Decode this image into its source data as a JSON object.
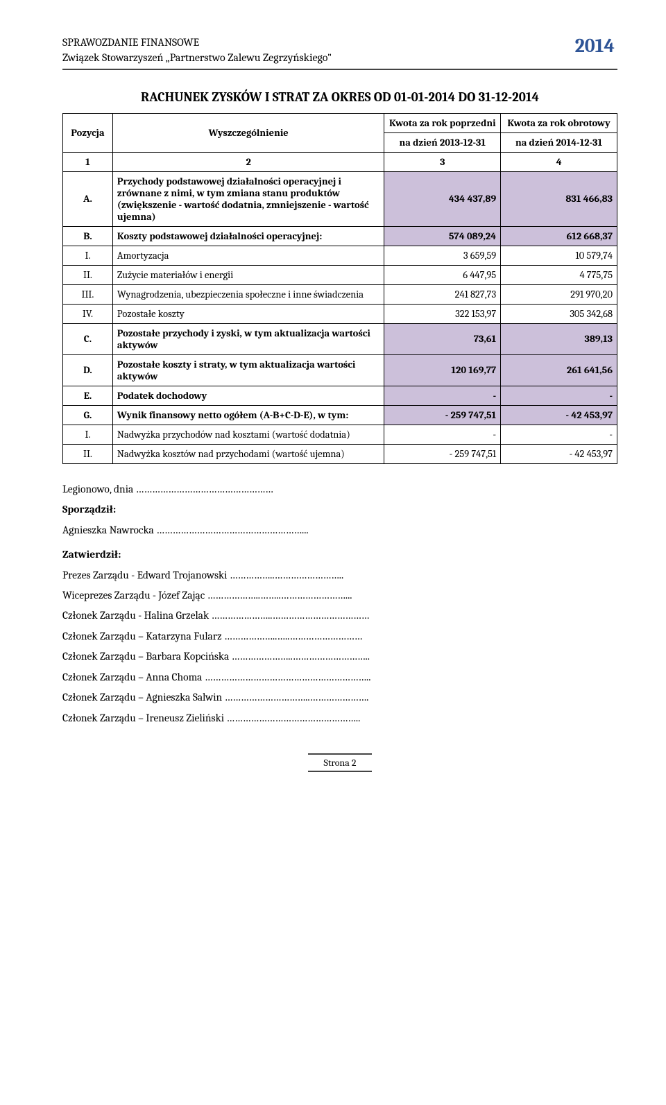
{
  "header": {
    "line1": "SPRAWOZDANIE FINANSOWE",
    "line2": "Związek Stowarzyszeń „Partnerstwo Zalewu Zegrzyńskiego\"",
    "year": "2014"
  },
  "title": "RACHUNEK ZYSKÓW I STRAT ZA OKRES OD 01-01-2014 DO 31-12-2014",
  "table": {
    "head": {
      "pozycja": "Pozycja",
      "wyszcz": "Wyszczególnienie",
      "col1_top": "Kwota za rok poprzedni",
      "col2_top": "Kwota za rok obrotowy",
      "col1_sub": "na dzień 2013-12-31",
      "col2_sub": "na dzień 2014-12-31",
      "h1": "1",
      "h2": "2",
      "h3": "3",
      "h4": "4"
    },
    "rows": [
      {
        "pos": "A.",
        "desc": "Przychody podstawowej działalności operacyjnej i zrównane z nimi, w tym zmiana stanu produktów (zwiększenie - wartość dodatnia, zmniejszenie - wartość ujemna)",
        "v1": "434 437,89",
        "v2": "831 466,83",
        "bold": true,
        "hl": true
      },
      {
        "pos": "B.",
        "desc": "Koszty podstawowej działalności operacyjnej:",
        "v1": "574 089,24",
        "v2": "612 668,37",
        "bold": true,
        "hl": true
      },
      {
        "pos": "I.",
        "desc": "Amortyzacja",
        "v1": "3 659,59",
        "v2": "10 579,74",
        "bold": false,
        "hl": false
      },
      {
        "pos": "II.",
        "desc": "Zużycie materiałów i energii",
        "v1": "6 447,95",
        "v2": "4 775,75",
        "bold": false,
        "hl": false
      },
      {
        "pos": "III.",
        "desc": "Wynagrodzenia, ubezpieczenia społeczne i inne świadczenia",
        "v1": "241 827,73",
        "v2": "291 970,20",
        "bold": false,
        "hl": false
      },
      {
        "pos": "IV.",
        "desc": "Pozostałe koszty",
        "v1": "322 153,97",
        "v2": "305 342,68",
        "bold": false,
        "hl": false
      },
      {
        "pos": "C.",
        "desc": "Pozostałe przychody i zyski, w tym aktualizacja wartości aktywów",
        "v1": "73,61",
        "v2": "389,13",
        "bold": true,
        "hl": true
      },
      {
        "pos": "D.",
        "desc": "Pozostałe koszty i straty, w tym aktualizacja wartości aktywów",
        "v1": "120 169,77",
        "v2": "261 641,56",
        "bold": true,
        "hl": true
      },
      {
        "pos": "E.",
        "desc": "Podatek dochodowy",
        "v1": "-",
        "v2": "-",
        "bold": true,
        "hl": true
      },
      {
        "pos": "G.",
        "desc": "Wynik finansowy netto ogółem (A-B+C-D-E), w tym:",
        "v1": "- 259 747,51",
        "v2": "- 42 453,97",
        "bold": true,
        "hl": true
      },
      {
        "pos": "I.",
        "desc": "Nadwyżka przychodów nad kosztami (wartość dodatnia)",
        "v1": "-",
        "v2": "-",
        "bold": false,
        "hl": false
      },
      {
        "pos": "II.",
        "desc": "Nadwyżka kosztów nad przychodami (wartość ujemna)",
        "v1": "- 259 747,51",
        "v2": "- 42 453,97",
        "bold": false,
        "hl": false
      }
    ]
  },
  "signatures": {
    "place": "Legionowo, dnia ……………………………………………",
    "prepared_label": "Sporządził:",
    "prepared_name": "Agnieszka Nawrocka ………………………………………………...",
    "approved_label": "Zatwierdził:",
    "lines": [
      "Prezes Zarządu - Edward Trojanowski ……………..……………………..",
      "Wiceprezes Zarządu - Józef Zając ………………..……..……………………...",
      "Członek Zarządu - Halina Grzelak …………………..………………………………",
      "Członek Zarządu – Katarzyna Fularz ………………..…..………………………",
      "Członek Zarządu – Barbara Kopcińska …………………..………………………..",
      "Członek Zarządu – Anna Choma ……………………………………………………..",
      "Członek Zarządu – Agnieszka Salwin …………………………..………………….",
      "Członek Zarządu – Ireneusz Zieliński ………………………………………….."
    ]
  },
  "footer": "Strona 2"
}
